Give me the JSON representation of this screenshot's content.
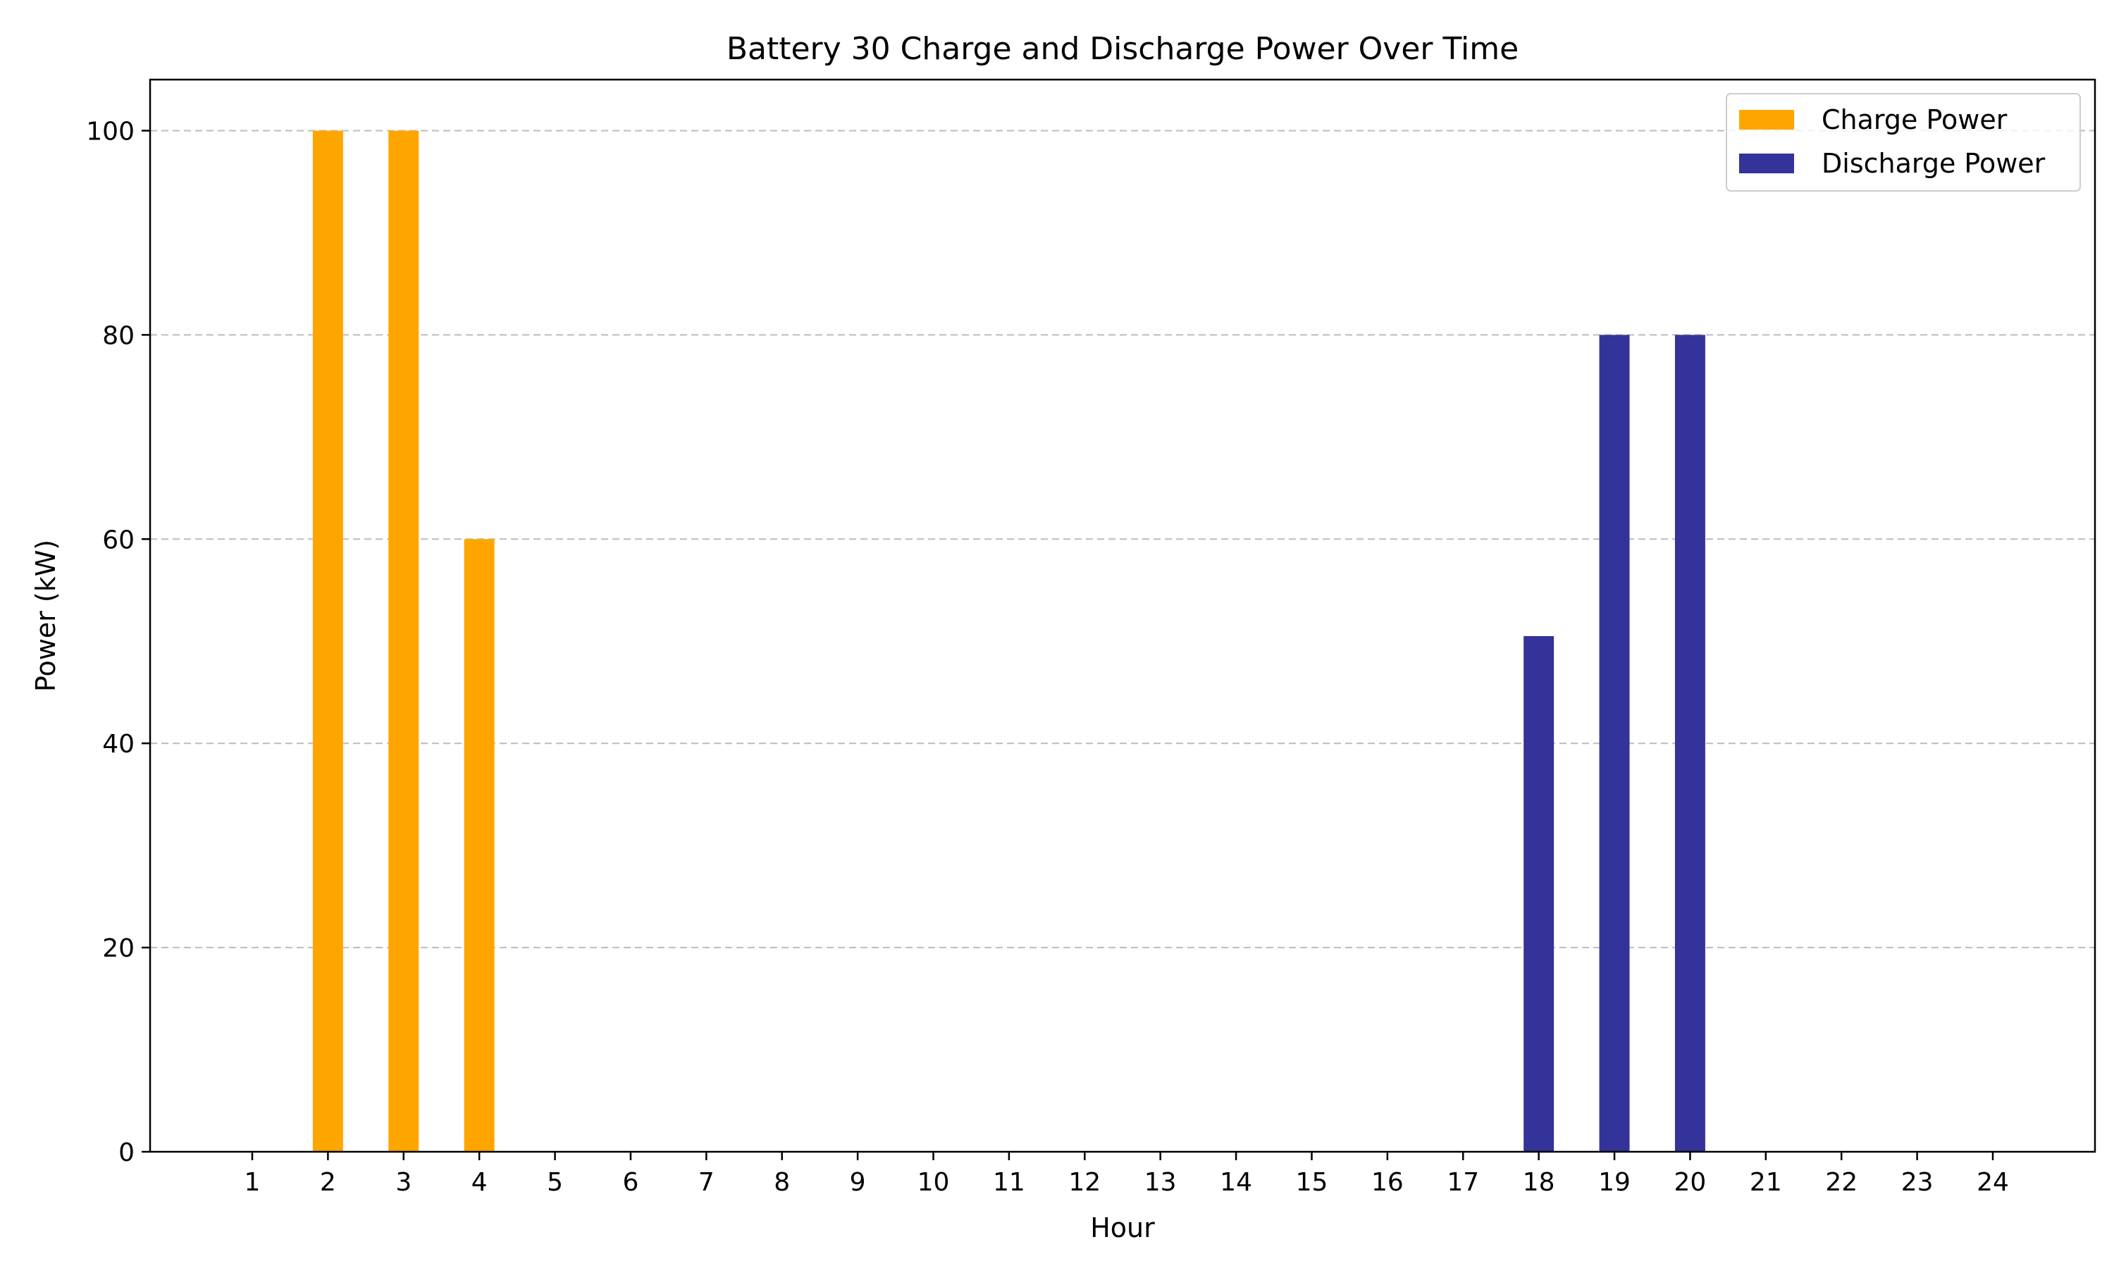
{
  "chart_data": {
    "type": "bar",
    "title": "Battery 30 Charge and Discharge Power Over Time",
    "xlabel": "Hour",
    "ylabel": "Power (kW)",
    "categories": [
      "1",
      "2",
      "3",
      "4",
      "5",
      "6",
      "7",
      "8",
      "9",
      "10",
      "11",
      "12",
      "13",
      "14",
      "15",
      "16",
      "17",
      "18",
      "19",
      "20",
      "21",
      "22",
      "23",
      "24"
    ],
    "x": [
      1,
      2,
      3,
      4,
      5,
      6,
      7,
      8,
      9,
      10,
      11,
      12,
      13,
      14,
      15,
      16,
      17,
      18,
      19,
      20,
      21,
      22,
      23,
      24
    ],
    "xlim": [
      -0.35,
      25.35
    ],
    "ylim": [
      0,
      105
    ],
    "yticks": [
      0,
      20,
      40,
      60,
      80,
      100
    ],
    "grid": "y-dashed",
    "legend_position": "top-right",
    "series": [
      {
        "name": "Charge Power",
        "color": "#FFA500",
        "values": [
          0,
          100,
          100,
          60,
          0,
          0,
          0,
          0,
          0,
          0,
          0,
          0,
          0,
          0,
          0,
          0,
          0,
          0,
          0,
          0,
          0,
          0,
          0,
          0
        ]
      },
      {
        "name": "Discharge Power",
        "color": "#333399",
        "values": [
          0,
          0,
          0,
          0,
          0,
          0,
          0,
          0,
          0,
          0,
          0,
          0,
          0,
          0,
          0,
          0,
          0,
          50.5,
          80,
          80,
          0,
          0,
          0,
          0
        ]
      }
    ]
  }
}
